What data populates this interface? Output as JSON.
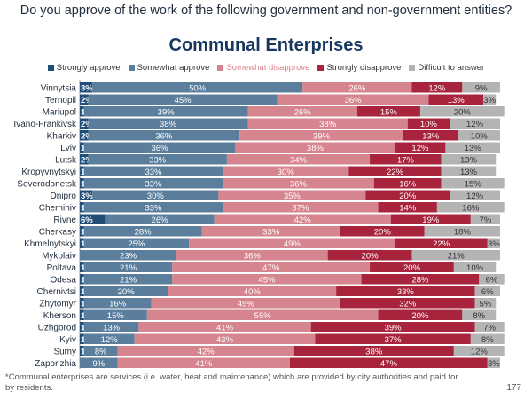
{
  "question": "Do you approve of the work of the following government and non-government entities?",
  "footnote": "*Communal enterprises are services (i.e. water, heat and maintenance) which are provided by city authorities and paid for by residents.",
  "page_number": "177",
  "colors": {
    "Strongly approve": "#1f4e79",
    "Somewhat approve": "#5b7e9c",
    "Somewhat disapprove": "#d6848e",
    "Strongly disapprove": "#a8233c",
    "Difficult to answer": "#b4b4b4"
  },
  "chart_data": {
    "type": "bar",
    "orientation": "horizontal",
    "stacked": true,
    "title": "Communal Enterprises",
    "legend_position": "top",
    "xlim": [
      0,
      100
    ],
    "x_ticks": [
      "0%",
      "10%",
      "20%",
      "30%",
      "40%",
      "50%",
      "60%",
      "70%",
      "80%",
      "90%",
      "100%"
    ],
    "categories": [
      "Vinnytsia",
      "Ternopil",
      "Mariupol",
      "Ivano-Frankivsk",
      "Kharkiv",
      "Lviv",
      "Lutsk",
      "Kropyvnytskyi",
      "Severodonetsk",
      "Dnipro",
      "Chernihiv",
      "Rivne",
      "Cherkasy",
      "Khmelnytskyi",
      "Mykolaiv",
      "Poltava",
      "Odesa",
      "Chernivtsi",
      "Zhytomyr",
      "Kherson",
      "Uzhgorod",
      "Kyiv",
      "Sumy",
      "Zaporizhia"
    ],
    "series": [
      {
        "name": "Strongly approve",
        "values": [
          3,
          2,
          1,
          2,
          2,
          1,
          2,
          1,
          1,
          3,
          1,
          6,
          1,
          1,
          0,
          1,
          1,
          1,
          1,
          1,
          1,
          1,
          1,
          0
        ],
        "labels": [
          "3%",
          "2%",
          "1%",
          "2%",
          "2%",
          "1%",
          "2%",
          "1%",
          "1%",
          "3%",
          "1%",
          "6%",
          "1%",
          "1%",
          "",
          "1%",
          "1%",
          "1%",
          "1%",
          "1%",
          "1%",
          "1%",
          "1%",
          ""
        ]
      },
      {
        "name": "Somewhat approve",
        "values": [
          50,
          45,
          39,
          38,
          36,
          36,
          33,
          33,
          33,
          30,
          33,
          26,
          28,
          25,
          23,
          21,
          21,
          20,
          16,
          15,
          13,
          12,
          8,
          9
        ],
        "labels": [
          "50%",
          "45%",
          "39%",
          "38%",
          "36%",
          "36%",
          "33%",
          "33%",
          "33%",
          "30%",
          "33%",
          "26%",
          "28%",
          "25%",
          "23%",
          "21%",
          "21%",
          "20%",
          "16%",
          "15%",
          "13%",
          "12%",
          "8%",
          "9%"
        ]
      },
      {
        "name": "Somewhat disapprove",
        "values": [
          26,
          36,
          26,
          38,
          39,
          38,
          34,
          30,
          36,
          35,
          37,
          42,
          33,
          49,
          36,
          47,
          45,
          40,
          45,
          55,
          41,
          43,
          42,
          41
        ],
        "labels": [
          "26%",
          "36%",
          "26%",
          "38%",
          "39%",
          "38%",
          "34%",
          "30%",
          "36%",
          "35%",
          "37%",
          "42%",
          "33%",
          "49%",
          "36%",
          "47%",
          "45%",
          "40%",
          "45%",
          "55%",
          "41%",
          "43%",
          "42%",
          "41%"
        ]
      },
      {
        "name": "Strongly disapprove",
        "values": [
          12,
          13,
          15,
          10,
          13,
          12,
          17,
          22,
          16,
          20,
          14,
          19,
          20,
          22,
          20,
          20,
          28,
          33,
          32,
          20,
          39,
          37,
          38,
          47
        ],
        "labels": [
          "12%",
          "13%",
          "15%",
          "10%",
          "13%",
          "12%",
          "17%",
          "22%",
          "16%",
          "20%",
          "14%",
          "19%",
          "20%",
          "22%",
          "20%",
          "20%",
          "28%",
          "33%",
          "32%",
          "20%",
          "39%",
          "37%",
          "38%",
          "47%"
        ]
      },
      {
        "name": "Difficult to answer",
        "values": [
          9,
          3,
          20,
          12,
          10,
          13,
          13,
          13,
          15,
          12,
          16,
          7,
          18,
          3,
          21,
          10,
          6,
          6,
          5,
          8,
          7,
          8,
          12,
          3
        ],
        "labels": [
          "9%",
          "3%",
          "20%",
          "12%",
          "10%",
          "13%",
          "13%",
          "13%",
          "15%",
          "12%",
          "16%",
          "7%",
          "18%",
          "3%",
          "21%",
          "10%",
          "6%",
          "6%",
          "5%",
          "8%",
          "7%",
          "8%",
          "12%",
          "3%"
        ]
      }
    ]
  }
}
